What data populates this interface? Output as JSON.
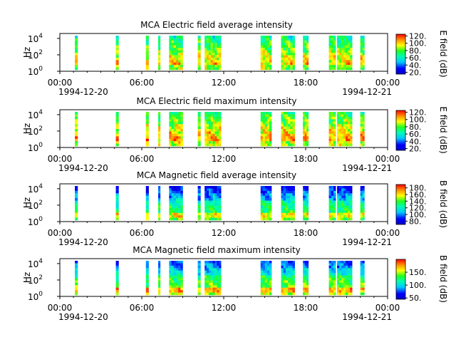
{
  "chart_data": [
    {
      "type": "heatmap",
      "title": "MCA  Electric field average intensity",
      "ylabel": "Hz",
      "y_scale": "log",
      "y_ticks": [
        {
          "base": "10",
          "exp": "0"
        },
        {
          "base": "10",
          "exp": "2"
        },
        {
          "base": "10",
          "exp": "4"
        }
      ],
      "x_ticks": [
        "00:00",
        "06:00",
        "12:00",
        "18:00",
        "00:00"
      ],
      "x_hours": [
        0,
        6,
        12,
        18,
        24
      ],
      "x_start_date": "1994-12-20",
      "x_end_date": "1994-12-21",
      "colorbar_label": "E field (dB)",
      "colorbar_ticks": [
        "20.",
        "40.",
        "60.",
        "80.",
        "100.",
        "120."
      ],
      "colorbar_tick_values": [
        20,
        40,
        60,
        80,
        100,
        120
      ],
      "colorbar_range": [
        15,
        125
      ],
      "data_segments_hours": [
        [
          1.1,
          1.3
        ],
        [
          4.1,
          4.3
        ],
        [
          6.3,
          6.5
        ],
        [
          7.2,
          7.35
        ],
        [
          8.0,
          9.0
        ],
        [
          10.1,
          10.3
        ],
        [
          10.6,
          11.8
        ],
        [
          14.7,
          15.5
        ],
        [
          16.2,
          17.2
        ],
        [
          17.8,
          18.2
        ],
        [
          19.7,
          20.2
        ],
        [
          20.3,
          21.4
        ],
        [
          22.0,
          22.3
        ]
      ]
    },
    {
      "type": "heatmap",
      "title": "MCA  Electric field maximum intensity",
      "ylabel": "Hz",
      "y_scale": "log",
      "y_ticks": [
        {
          "base": "10",
          "exp": "0"
        },
        {
          "base": "10",
          "exp": "2"
        },
        {
          "base": "10",
          "exp": "4"
        }
      ],
      "x_ticks": [
        "00:00",
        "06:00",
        "12:00",
        "18:00",
        "00:00"
      ],
      "x_hours": [
        0,
        6,
        12,
        18,
        24
      ],
      "x_start_date": "1994-12-20",
      "x_end_date": "1994-12-21",
      "colorbar_label": "E field (dB)",
      "colorbar_ticks": [
        "20.",
        "40.",
        "60.",
        "80.",
        "100.",
        "120."
      ],
      "colorbar_tick_values": [
        20,
        40,
        60,
        80,
        100,
        120
      ],
      "colorbar_range": [
        15,
        125
      ],
      "data_segments_hours": [
        [
          1.1,
          1.3
        ],
        [
          4.1,
          4.3
        ],
        [
          6.3,
          6.5
        ],
        [
          7.2,
          7.35
        ],
        [
          8.0,
          9.0
        ],
        [
          10.1,
          10.3
        ],
        [
          10.6,
          11.8
        ],
        [
          14.7,
          15.5
        ],
        [
          16.2,
          17.2
        ],
        [
          17.8,
          18.2
        ],
        [
          19.7,
          20.2
        ],
        [
          20.3,
          21.4
        ],
        [
          22.0,
          22.3
        ]
      ]
    },
    {
      "type": "heatmap",
      "title": "MCA  Magnetic field average intensity",
      "ylabel": "Hz",
      "y_scale": "log",
      "y_ticks": [
        {
          "base": "10",
          "exp": "0"
        },
        {
          "base": "10",
          "exp": "2"
        },
        {
          "base": "10",
          "exp": "4"
        }
      ],
      "x_ticks": [
        "00:00",
        "06:00",
        "12:00",
        "18:00",
        "00:00"
      ],
      "x_hours": [
        0,
        6,
        12,
        18,
        24
      ],
      "x_start_date": "1994-12-20",
      "x_end_date": "1994-12-21",
      "colorbar_label": "B field (dB)",
      "colorbar_ticks": [
        "80.",
        "100.",
        "120.",
        "140.",
        "160.",
        "180."
      ],
      "colorbar_tick_values": [
        80,
        100,
        120,
        140,
        160,
        180
      ],
      "colorbar_range": [
        70,
        190
      ],
      "data_segments_hours": [
        [
          1.1,
          1.3
        ],
        [
          4.1,
          4.3
        ],
        [
          6.3,
          6.5
        ],
        [
          7.2,
          7.35
        ],
        [
          8.0,
          9.0
        ],
        [
          10.1,
          10.3
        ],
        [
          10.6,
          11.8
        ],
        [
          14.7,
          15.5
        ],
        [
          16.2,
          17.2
        ],
        [
          17.8,
          18.2
        ],
        [
          19.7,
          20.2
        ],
        [
          20.3,
          21.4
        ],
        [
          22.0,
          22.3
        ]
      ]
    },
    {
      "type": "heatmap",
      "title": "MCA  Magnetic field maximum intensity",
      "ylabel": "Hz",
      "y_scale": "log",
      "y_ticks": [
        {
          "base": "10",
          "exp": "0"
        },
        {
          "base": "10",
          "exp": "2"
        },
        {
          "base": "10",
          "exp": "4"
        }
      ],
      "x_ticks": [
        "00:00",
        "06:00",
        "12:00",
        "18:00",
        "00:00"
      ],
      "x_hours": [
        0,
        6,
        12,
        18,
        24
      ],
      "x_start_date": "1994-12-20",
      "x_end_date": "1994-12-21",
      "colorbar_label": "B field (dB)",
      "colorbar_ticks": [
        "50.",
        "100.",
        "150."
      ],
      "colorbar_tick_values": [
        50,
        100,
        150
      ],
      "colorbar_range": [
        45,
        200
      ],
      "data_segments_hours": [
        [
          1.1,
          1.3
        ],
        [
          4.1,
          4.3
        ],
        [
          6.3,
          6.5
        ],
        [
          7.2,
          7.35
        ],
        [
          8.0,
          9.0
        ],
        [
          10.1,
          10.3
        ],
        [
          10.6,
          11.8
        ],
        [
          14.7,
          15.5
        ],
        [
          16.2,
          17.2
        ],
        [
          17.8,
          18.2
        ],
        [
          19.7,
          20.2
        ],
        [
          20.3,
          21.4
        ],
        [
          22.0,
          22.3
        ]
      ]
    }
  ]
}
